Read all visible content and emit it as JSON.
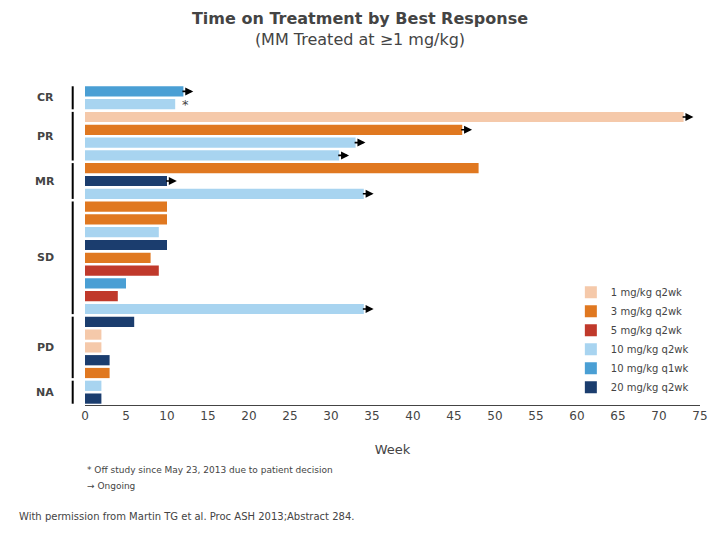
{
  "chart_data": {
    "type": "bar",
    "orientation": "horizontal",
    "title": "Time on Treatment by Best Response",
    "subtitle": "(MM Treated at ≥1 mg/kg)",
    "xlabel": "Week",
    "xlim": [
      0,
      75
    ],
    "xticks": [
      0,
      5,
      10,
      15,
      20,
      25,
      30,
      35,
      40,
      45,
      50,
      55,
      60,
      65,
      70,
      75
    ],
    "grid": false,
    "tick_labels": "x",
    "legend": "lower right",
    "categories": [
      null,
      null,
      null,
      null,
      null,
      null,
      null,
      null,
      null,
      null,
      null,
      null,
      null,
      null,
      null,
      null,
      null,
      null,
      null,
      null,
      null,
      null,
      null,
      null,
      null
    ],
    "series": [
      {
        "name": "1 mg/kg q2wk",
        "color": "#f5c9aa",
        "values": [
          null,
          null,
          73,
          null,
          null,
          null,
          null,
          null,
          null,
          null,
          null,
          null,
          null,
          null,
          null,
          null,
          null,
          null,
          null,
          2,
          2,
          null,
          null,
          null,
          null
        ]
      },
      {
        "name": "3 mg/kg q2wk",
        "color": "#e07820",
        "values": [
          null,
          null,
          null,
          46,
          null,
          null,
          48,
          null,
          null,
          10,
          10,
          null,
          null,
          8,
          null,
          null,
          null,
          null,
          null,
          null,
          null,
          null,
          3,
          null,
          null
        ]
      },
      {
        "name": "5 mg/kg q2wk",
        "color": "#c0392b",
        "values": [
          null,
          null,
          null,
          null,
          null,
          null,
          null,
          null,
          null,
          null,
          null,
          null,
          null,
          null,
          9,
          null,
          4,
          null,
          null,
          null,
          null,
          null,
          null,
          null,
          null
        ]
      },
      {
        "name": "10 mg/kg q2wk",
        "color": "#a8d4f0",
        "values": [
          null,
          11,
          null,
          null,
          33,
          31,
          null,
          null,
          34,
          null,
          null,
          9,
          null,
          null,
          null,
          null,
          null,
          34,
          null,
          null,
          null,
          null,
          null,
          2,
          null
        ]
      },
      {
        "name": "10 mg/kg q1wk",
        "color": "#4a9fd4",
        "values": [
          12,
          null,
          null,
          null,
          null,
          null,
          null,
          null,
          null,
          null,
          null,
          null,
          null,
          null,
          null,
          5,
          null,
          null,
          null,
          null,
          null,
          null,
          null,
          null,
          null
        ]
      },
      {
        "name": "20 mg/kg q2wk",
        "color": "#1b3d6e",
        "values": [
          null,
          null,
          null,
          null,
          null,
          null,
          null,
          10,
          null,
          null,
          null,
          null,
          10,
          null,
          null,
          null,
          null,
          null,
          6,
          null,
          null,
          3,
          null,
          null,
          2
        ]
      }
    ],
    "annotations": [
      {
        "type": "arrow",
        "category": 0
      },
      {
        "text": "*",
        "category": 1
      },
      {
        "type": "arrow",
        "category": 2
      },
      {
        "type": "arrow",
        "category": 3
      },
      {
        "type": "arrow",
        "category": 4
      },
      {
        "type": "arrow",
        "category": 5
      },
      {
        "type": "arrow",
        "category": 7
      },
      {
        "type": "arrow",
        "category": 8
      },
      {
        "type": "arrow",
        "category": 17
      },
      {
        "text": "CR",
        "categories": [
          0,
          1
        ]
      },
      {
        "text": "PR",
        "categories": [
          2,
          5
        ]
      },
      {
        "text": "MR",
        "categories": [
          6,
          8
        ]
      },
      {
        "text": "SD",
        "categories": [
          9,
          17
        ]
      },
      {
        "text": "PD",
        "categories": [
          18,
          22
        ]
      },
      {
        "text": "NA",
        "categories": [
          23,
          24
        ]
      },
      {
        "text": "* Off study since May 23, 2013 due to patient decision"
      },
      {
        "text": "→ Ongoing"
      },
      {
        "text": "With permission from Martin TG et al. Proc ASH 2013;Abstract 284."
      }
    ]
  }
}
